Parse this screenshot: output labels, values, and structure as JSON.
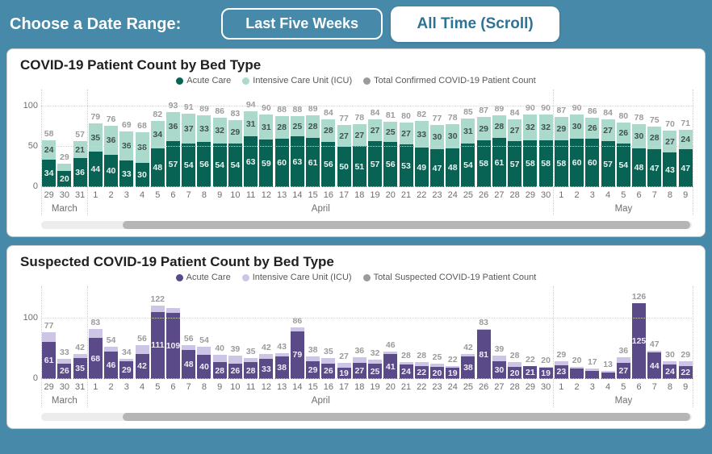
{
  "header": {
    "label": "Choose a Date Range:",
    "buttons": [
      {
        "label": "Last Five Weeks"
      },
      {
        "label": "All Time (Scroll)"
      }
    ]
  },
  "colors": {
    "background": "#4789a9",
    "button_text": "#2d7396",
    "confirmed_acute": "#096354",
    "confirmed_icu": "#abd9cb",
    "suspected_acute": "#5a4a88",
    "suspected_icu": "#ccc5e5",
    "total_label": "#9b9b9b",
    "axis_text": "#6e6e6e"
  },
  "chart_data": [
    {
      "type": "bar",
      "stacked": true,
      "title": "COVID-19 Patient Count by Bed Type",
      "legend": [
        "Acute Care",
        "Intensive Care Unit (ICU)",
        "Total Confirmed COVID-19 Patient Count"
      ],
      "legend_colors": [
        "#096354",
        "#abd9cb",
        "#9b9b9b"
      ],
      "ylim": [
        0,
        100
      ],
      "y_ticks": [
        0,
        50,
        100
      ],
      "grid": "dotted",
      "months": [
        {
          "label": "March",
          "count": 3
        },
        {
          "label": "April",
          "count": 30
        },
        {
          "label": "May",
          "count": 9
        }
      ],
      "days": [
        "29",
        "30",
        "31",
        "1",
        "2",
        "3",
        "4",
        "5",
        "6",
        "7",
        "8",
        "9",
        "10",
        "11",
        "12",
        "13",
        "14",
        "15",
        "16",
        "17",
        "18",
        "19",
        "20",
        "21",
        "22",
        "23",
        "24",
        "25",
        "26",
        "27",
        "28",
        "29",
        "30",
        "1",
        "2",
        "3",
        "4",
        "5",
        "6",
        "7",
        "8",
        "9"
      ],
      "acute": {
        "name": "Acute Care",
        "color": "#096354",
        "label_color": "#e9f3f0",
        "show_labels": true,
        "hidden_label_indexes": [],
        "values": [
          34,
          20,
          36,
          44,
          40,
          33,
          30,
          48,
          57,
          54,
          56,
          54,
          54,
          63,
          59,
          60,
          63,
          61,
          56,
          50,
          51,
          57,
          56,
          53,
          49,
          47,
          48,
          54,
          58,
          61,
          57,
          58,
          58,
          58,
          60,
          60,
          57,
          54,
          48,
          47,
          43,
          47
        ]
      },
      "icu": {
        "name": "Intensive Care Unit (ICU)",
        "color": "#abd9cb",
        "label_color": "#3f524c",
        "show_labels": true,
        "hidden_label_indexes": [
          1
        ],
        "values": [
          24,
          9,
          21,
          35,
          36,
          36,
          38,
          34,
          36,
          37,
          33,
          32,
          29,
          31,
          31,
          28,
          25,
          28,
          28,
          27,
          27,
          27,
          25,
          27,
          33,
          30,
          30,
          31,
          29,
          28,
          27,
          32,
          32,
          29,
          30,
          26,
          27,
          26,
          30,
          28,
          27,
          24
        ]
      },
      "totals": {
        "name": "Total Confirmed COVID-19 Patient Count",
        "label_color": "#9b9b9b",
        "hidden_label_indexes": [],
        "values": [
          58,
          29,
          57,
          79,
          76,
          69,
          68,
          82,
          93,
          91,
          89,
          86,
          83,
          94,
          90,
          88,
          88,
          89,
          84,
          77,
          78,
          84,
          81,
          80,
          82,
          77,
          78,
          85,
          87,
          89,
          84,
          90,
          90,
          87,
          90,
          86,
          84,
          80,
          78,
          75,
          70,
          71
        ]
      }
    },
    {
      "type": "bar",
      "stacked": true,
      "title": "Suspected COVID-19 Patient Count by Bed Type",
      "legend": [
        "Acute Care",
        "Intensive Care Unit (ICU)",
        "Total Suspected COVID-19 Patient Count"
      ],
      "legend_colors": [
        "#5a4a88",
        "#ccc5e5",
        "#9b9b9b"
      ],
      "ylim": [
        0,
        100
      ],
      "y_ticks": [
        0,
        100
      ],
      "grid": "dotted",
      "months": [
        {
          "label": "March",
          "count": 3
        },
        {
          "label": "April",
          "count": 30
        },
        {
          "label": "May",
          "count": 9
        }
      ],
      "days": [
        "29",
        "30",
        "31",
        "1",
        "2",
        "3",
        "4",
        "5",
        "6",
        "7",
        "8",
        "9",
        "10",
        "11",
        "12",
        "13",
        "14",
        "15",
        "16",
        "17",
        "18",
        "19",
        "20",
        "21",
        "22",
        "23",
        "24",
        "25",
        "26",
        "27",
        "28",
        "29",
        "30",
        "1",
        "2",
        "3",
        "4",
        "5",
        "6",
        "7",
        "8",
        "9"
      ],
      "acute": {
        "name": "Acute Care",
        "color": "#5a4a88",
        "label_color": "#efecf7",
        "show_labels": true,
        "hidden_label_indexes": [
          34,
          35,
          36
        ],
        "values": [
          61,
          26,
          35,
          68,
          46,
          29,
          42,
          111,
          109,
          48,
          40,
          28,
          26,
          28,
          33,
          38,
          79,
          29,
          26,
          19,
          27,
          25,
          41,
          24,
          22,
          20,
          19,
          38,
          81,
          30,
          20,
          21,
          19,
          23,
          17,
          14,
          11,
          27,
          125,
          44,
          24,
          22
        ]
      },
      "icu": {
        "name": "Intensive Care Unit (ICU)",
        "color": "#ccc5e5",
        "label_color": "#4a4a4a",
        "show_labels": false,
        "hidden_label_indexes": [],
        "values": [
          16,
          7,
          7,
          15,
          8,
          5,
          14,
          11,
          9,
          8,
          14,
          12,
          13,
          7,
          9,
          5,
          7,
          9,
          9,
          8,
          9,
          7,
          5,
          4,
          6,
          5,
          3,
          4,
          2,
          9,
          8,
          1,
          1,
          6,
          3,
          3,
          2,
          9,
          1,
          3,
          6,
          7
        ]
      },
      "totals": {
        "name": "Total Suspected COVID-19 Patient Count",
        "label_color": "#9b9b9b",
        "hidden_label_indexes": [
          8
        ],
        "values": [
          77,
          33,
          42,
          83,
          54,
          34,
          56,
          122,
          118,
          56,
          54,
          40,
          39,
          35,
          42,
          43,
          86,
          38,
          35,
          27,
          36,
          32,
          46,
          28,
          28,
          25,
          22,
          42,
          83,
          39,
          28,
          22,
          20,
          29,
          20,
          17,
          13,
          36,
          126,
          47,
          30,
          29
        ]
      }
    }
  ]
}
